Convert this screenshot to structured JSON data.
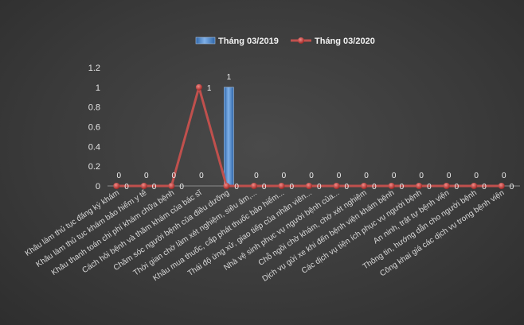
{
  "chart_data": {
    "type": "bar",
    "categories": [
      "Khâu làm thủ tục đăng ký khám",
      "Khâu làm thủ tục khám bảo hiểm y tế",
      "Khâu thanh toán chi phí khám chữa bệnh",
      "Cách hỏi bệnh và thăm khám của bác sĩ",
      "Chăm sóc người bệnh của điều dưỡng",
      "Thời gian chờ làm xét nghiệm, siêu âm,...",
      "Khâu mua thuốc, cấp phát thuốc bảo hiểm...",
      "Thái độ ứng xử, giao tiếp của nhân viên...",
      "Nhà vệ sinh phục vụ người bệnh của...",
      "Chỗ ngồi chờ khám, chờ xét nghiệm",
      "Dịch vụ gửi xe khi đến bệnh viện khám bệnh",
      "Các dịch vụ tiện ích phục vụ người bệnh",
      "An ninh, trật tự bệnh viện",
      "Thông tin, hướng dẫn cho người bệnh",
      "Công khai giá các dịch vụ trong bệnh viện"
    ],
    "series": [
      {
        "name": "Tháng 03/2019",
        "kind": "bar",
        "color": "#4a86c8",
        "values": [
          0,
          0,
          0,
          0,
          1,
          0,
          0,
          0,
          0,
          0,
          0,
          0,
          0,
          0,
          0
        ]
      },
      {
        "name": "Tháng 03/2020",
        "kind": "line",
        "color": "#c0504d",
        "values": [
          0,
          0,
          0,
          1,
          0,
          0,
          0,
          0,
          0,
          0,
          0,
          0,
          0,
          0,
          0
        ]
      }
    ],
    "yticks": [
      "0",
      "0.2",
      "0.4",
      "0.6",
      "0.8",
      "1",
      "1.2"
    ],
    "ylim": [
      0,
      1.2
    ],
    "data_labels": true,
    "legend": "top-center",
    "grid": false,
    "title": "",
    "xlabel": "",
    "ylabel": ""
  }
}
